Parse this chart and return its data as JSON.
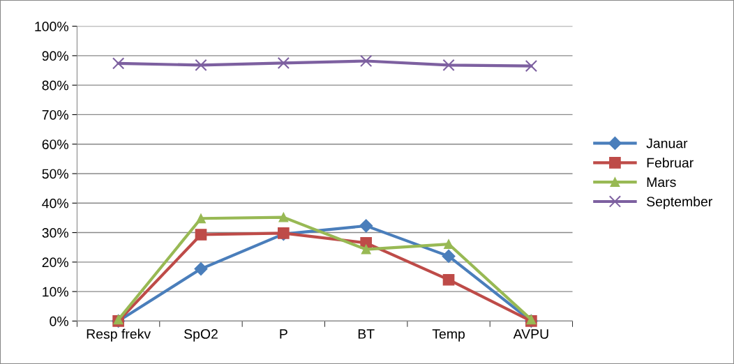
{
  "chart_data": {
    "type": "line",
    "categories": [
      "Resp frekv",
      "SpO2",
      "P",
      "BT",
      "Temp",
      "AVPU"
    ],
    "series": [
      {
        "name": "Januar",
        "color": "#4a7ebb",
        "marker": "diamond",
        "values": [
          0,
          17.7,
          29.5,
          32.3,
          22,
          0
        ]
      },
      {
        "name": "Februar",
        "color": "#be4b48",
        "marker": "square",
        "values": [
          0,
          29.3,
          29.8,
          26.5,
          14,
          0
        ]
      },
      {
        "name": "Mars",
        "color": "#98b954",
        "marker": "triangle",
        "values": [
          0.5,
          34.8,
          35.2,
          24.3,
          26.1,
          0.5
        ]
      },
      {
        "name": "September",
        "color": "#7d60a0",
        "marker": "cross",
        "values": [
          87.4,
          86.8,
          87.5,
          88.2,
          86.8,
          86.5
        ]
      }
    ],
    "ylim": [
      0,
      100
    ],
    "yticks": [
      {
        "value": 0,
        "label": "0%"
      },
      {
        "value": 10,
        "label": "10%"
      },
      {
        "value": 20,
        "label": "20%"
      },
      {
        "value": 30,
        "label": "30%"
      },
      {
        "value": 40,
        "label": "40%"
      },
      {
        "value": 50,
        "label": "50%"
      },
      {
        "value": 60,
        "label": "60%"
      },
      {
        "value": 70,
        "label": "70%"
      },
      {
        "value": 80,
        "label": "80%"
      },
      {
        "value": 90,
        "label": "90%"
      },
      {
        "value": 100,
        "label": "100%"
      }
    ],
    "grid": "y",
    "legend": "right",
    "line_style": "solid"
  }
}
